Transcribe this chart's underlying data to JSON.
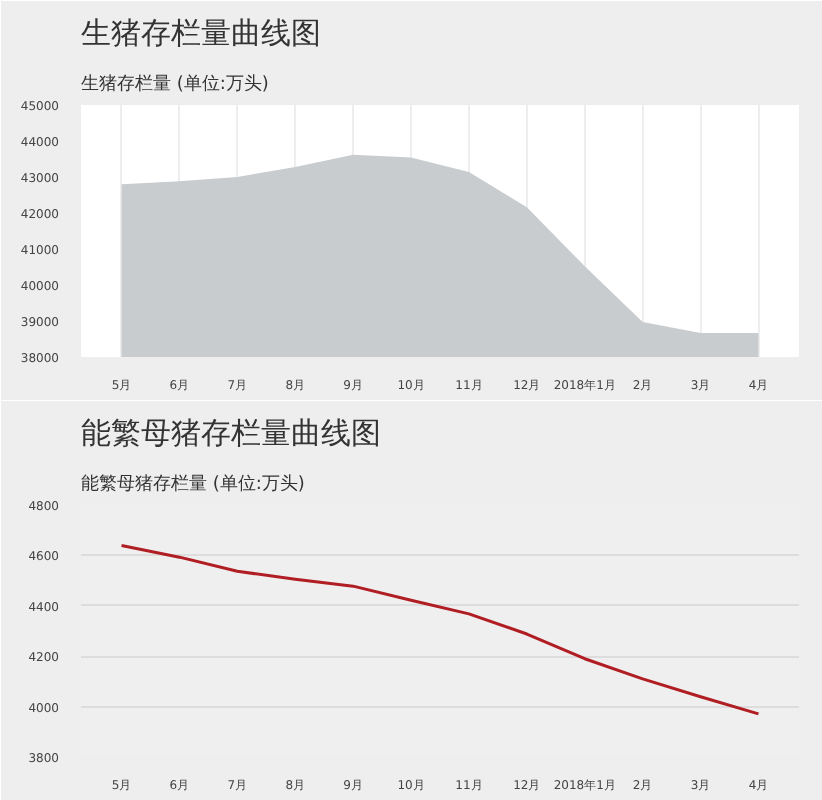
{
  "chart_data": [
    {
      "type": "area",
      "title": "生猪存栏量曲线图",
      "subtitle": "生猪存栏量 (单位:万头)",
      "categories": [
        "5月",
        "6月",
        "7月",
        "8月",
        "9月",
        "10月",
        "11月",
        "12月",
        "2018年1月",
        "2月",
        "3月",
        "4月"
      ],
      "series": [
        {
          "color": "#c8cccf",
          "values": [
            42800,
            42880,
            43000,
            43280,
            43620,
            43540,
            43140,
            42160,
            40520,
            38970,
            38670,
            38670
          ]
        }
      ],
      "ylim": [
        38000,
        45000
      ],
      "yticks": [
        38000,
        39000,
        40000,
        41000,
        42000,
        43000,
        44000,
        45000
      ],
      "grid": "x"
    },
    {
      "type": "line",
      "title": "能繁母猪存栏量曲线图",
      "subtitle": "能繁母猪存栏量 (单位:万头)",
      "categories": [
        "5月",
        "6月",
        "7月",
        "8月",
        "9月",
        "10月",
        "11月",
        "12月",
        "2018年1月",
        "2月",
        "3月",
        "4月"
      ],
      "series": [
        {
          "color": "#b01e23",
          "values": [
            4639,
            4593,
            4537,
            4505,
            4478,
            4422,
            4368,
            4288,
            4190,
            4110,
            4039,
            3971
          ]
        }
      ],
      "ylim": [
        3800,
        4800
      ],
      "yticks": [
        3800,
        4000,
        4200,
        4400,
        4600,
        4800
      ],
      "grid": "y",
      "line_style": "solid",
      "marker": "none"
    }
  ]
}
